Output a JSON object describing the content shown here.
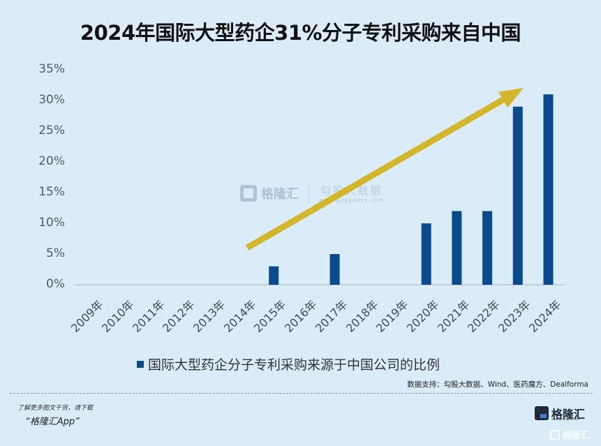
{
  "title": "2024年国际大型药企31%分子专利采购来自中国",
  "legend": {
    "label": "国际大型药企分子专利采购来源于中国公司的比例",
    "color": "#0a4a8f"
  },
  "source": "数据支持：勾股大数据、Wind、医药魔方、Dealforma",
  "promo": {
    "line1": "了解更多图文干货，请下载",
    "line2": "“格隆汇App”"
  },
  "logo": {
    "text": "格隆汇",
    "url": "www.gelonghui.com",
    "icon": "gelonghui-logo-icon"
  },
  "watermark": {
    "left": "格隆汇",
    "right": "勾股大数据",
    "url": "www.gogudata.com"
  },
  "colors": {
    "bar": "#0a4a8f",
    "arrow": "#d4b62a",
    "background": "#d9ecf8",
    "axis": "#b6c7d6"
  },
  "chart_data": {
    "type": "bar",
    "title": "2024年国际大型药企31%分子专利采购来自中国",
    "categories": [
      "2009年",
      "2010年",
      "2011年",
      "2012年",
      "2013年",
      "2014年",
      "2015年",
      "2016年",
      "2017年",
      "2018年",
      "2019年",
      "2020年",
      "2021年",
      "2022年",
      "2023年",
      "2024年"
    ],
    "series": [
      {
        "name": "国际大型药企分子专利采购来源于中国公司的比例",
        "values": [
          0,
          0,
          0,
          0,
          0,
          0,
          3,
          0,
          5,
          0,
          0,
          10,
          12,
          12,
          29,
          31
        ]
      }
    ],
    "yticks": [
      "0%",
      "5%",
      "10%",
      "15%",
      "20%",
      "25%",
      "30%",
      "35%"
    ],
    "ylim": [
      0,
      35
    ],
    "xlabel": "",
    "ylabel": "",
    "legend_position": "bottom",
    "grid": false,
    "annotations": [
      "upward trend arrow (yellow) from 2014 to 2023"
    ]
  }
}
